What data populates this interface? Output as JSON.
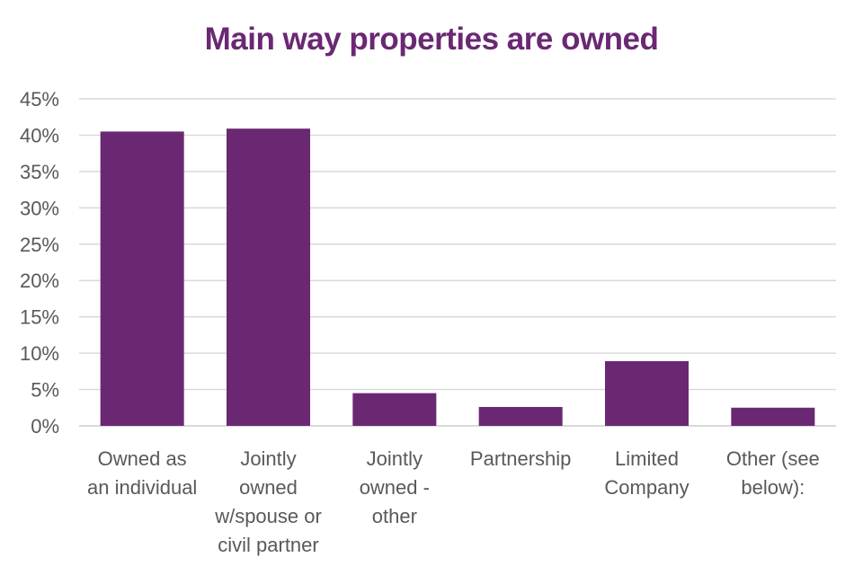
{
  "chart_data": {
    "type": "bar",
    "title": "Main way properties are owned",
    "xlabel": "",
    "ylabel": "",
    "categories": [
      [
        "Owned as",
        "an individual"
      ],
      [
        "Jointly",
        "owned",
        "w/spouse or",
        "civil partner"
      ],
      [
        "Jointly",
        "owned -",
        "other"
      ],
      [
        "Partnership"
      ],
      [
        "Limited",
        "Company"
      ],
      [
        "Other (see",
        "below):"
      ]
    ],
    "values": [
      40.5,
      40.9,
      4.5,
      2.6,
      8.9,
      2.5
    ],
    "ylim": [
      0,
      45
    ],
    "yticks": [
      0,
      5,
      10,
      15,
      20,
      25,
      30,
      35,
      40,
      45
    ],
    "ytick_format": "%",
    "grid": true,
    "legend": "none",
    "colors": {
      "bar": "#6a2873",
      "grid": "#d9d9d9",
      "text": "#595959",
      "title": "#6a2873"
    }
  }
}
